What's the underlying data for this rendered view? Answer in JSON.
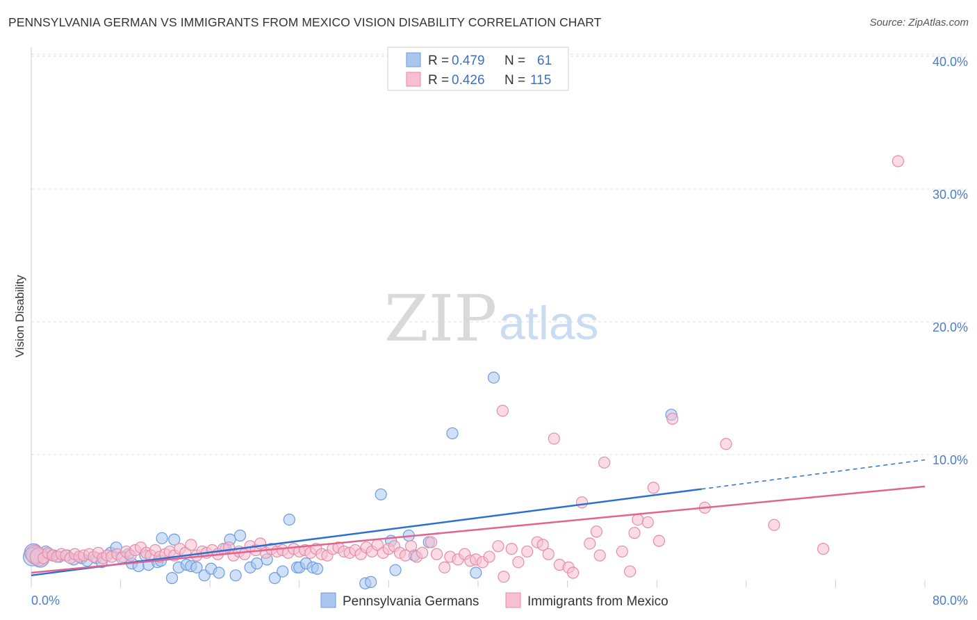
{
  "title": "PENNSYLVANIA GERMAN VS IMMIGRANTS FROM MEXICO VISION DISABILITY CORRELATION CHART",
  "source": "Source: ZipAtlas.com",
  "watermark": {
    "zip": "ZIP",
    "atlas": "atlas"
  },
  "colors": {
    "blue_fill": "#a9c6ee",
    "blue_stroke": "#6d9be0",
    "blue_line": "#2b6fd1",
    "pink_fill": "#f7bfd0",
    "pink_stroke": "#e98aa8",
    "pink_line": "#e0648f",
    "tick_text": "#4a7cc9",
    "grid": "#dddddd"
  },
  "legend": {
    "rows": [
      {
        "r_label": "R = ",
        "r_value": "0.479",
        "n_label": "N = ",
        "n_value": "61",
        "color": "blue"
      },
      {
        "r_label": "R = ",
        "r_value": "0.426",
        "n_label": "N = ",
        "n_value": "115",
        "color": "pink"
      }
    ]
  },
  "chart_data": {
    "type": "scatter",
    "title": "PENNSYLVANIA GERMAN VS IMMIGRANTS FROM MEXICO VISION DISABILITY CORRELATION CHART",
    "ylabel": "Vision Disability",
    "xlabel": "",
    "xlim": [
      0,
      80
    ],
    "ylim": [
      0,
      42
    ],
    "x_tick_labels": [
      {
        "value": 0,
        "label": "0.0%"
      },
      {
        "value": 80,
        "label": "80.0%"
      }
    ],
    "y_tick_labels": [
      {
        "value": 10,
        "label": "10.0%"
      },
      {
        "value": 20,
        "label": "20.0%"
      },
      {
        "value": 30,
        "label": "30.0%"
      },
      {
        "value": 40,
        "label": "40.0%"
      }
    ],
    "grid": true,
    "legend_position": "top-center",
    "series": [
      {
        "name": "Pennsylvania Germans",
        "color": "blue",
        "trend": {
          "x0": 0,
          "y0": 0.9,
          "x1": 60,
          "y1": 7.4,
          "dash_to_x": 80,
          "dash_to_y": 9.6
        },
        "points": [
          [
            0.2,
            2.6
          ],
          [
            0.4,
            2.4
          ],
          [
            0.8,
            2.2
          ],
          [
            1.3,
            2.7
          ],
          [
            1.6,
            2.5
          ],
          [
            2.0,
            2.4
          ],
          [
            2.5,
            2.3
          ],
          [
            3.2,
            2.4
          ],
          [
            3.8,
            2.1
          ],
          [
            4.5,
            2.2
          ],
          [
            5.0,
            2.0
          ],
          [
            5.8,
            2.2
          ],
          [
            6.3,
            1.9
          ],
          [
            7.1,
            2.6
          ],
          [
            7.6,
            3.0
          ],
          [
            8.2,
            2.3
          ],
          [
            8.7,
            2.5
          ],
          [
            9.0,
            1.8
          ],
          [
            9.6,
            1.6
          ],
          [
            10.2,
            2.4
          ],
          [
            10.5,
            1.7
          ],
          [
            11.3,
            1.9
          ],
          [
            11.6,
            2.0
          ],
          [
            11.7,
            3.7
          ],
          [
            12.6,
            0.7
          ],
          [
            12.8,
            3.6
          ],
          [
            13.2,
            1.5
          ],
          [
            13.9,
            1.7
          ],
          [
            14.3,
            1.6
          ],
          [
            14.8,
            1.5
          ],
          [
            15.5,
            0.9
          ],
          [
            16.1,
            1.4
          ],
          [
            16.8,
            1.1
          ],
          [
            17.4,
            2.9
          ],
          [
            17.8,
            3.6
          ],
          [
            18.3,
            0.9
          ],
          [
            18.7,
            3.9
          ],
          [
            19.6,
            1.5
          ],
          [
            20.2,
            1.8
          ],
          [
            21.1,
            2.1
          ],
          [
            21.8,
            0.7
          ],
          [
            22.5,
            1.2
          ],
          [
            23.1,
            5.1
          ],
          [
            23.8,
            1.5
          ],
          [
            24.0,
            1.5
          ],
          [
            24.6,
            1.8
          ],
          [
            25.2,
            1.5
          ],
          [
            25.6,
            1.4
          ],
          [
            29.9,
            0.3
          ],
          [
            30.4,
            0.4
          ],
          [
            31.3,
            7.0
          ],
          [
            32.2,
            3.5
          ],
          [
            32.6,
            1.3
          ],
          [
            33.8,
            3.9
          ],
          [
            34.3,
            2.4
          ],
          [
            35.6,
            3.4
          ],
          [
            37.7,
            11.6
          ],
          [
            39.8,
            1.1
          ],
          [
            41.4,
            15.8
          ],
          [
            57.3,
            13.0
          ],
          [
            0.1,
            2.3
          ]
        ]
      },
      {
        "name": "Immigrants from Mexico",
        "color": "pink",
        "trend": {
          "x0": 0,
          "y0": 1.1,
          "x1": 80,
          "y1": 7.6
        },
        "points": [
          [
            0.3,
            2.5
          ],
          [
            0.7,
            2.3
          ],
          [
            1.1,
            2.2
          ],
          [
            1.5,
            2.6
          ],
          [
            1.9,
            2.4
          ],
          [
            2.3,
            2.3
          ],
          [
            2.7,
            2.5
          ],
          [
            3.1,
            2.4
          ],
          [
            3.5,
            2.2
          ],
          [
            3.9,
            2.5
          ],
          [
            4.3,
            2.3
          ],
          [
            4.7,
            2.4
          ],
          [
            5.2,
            2.5
          ],
          [
            5.6,
            2.3
          ],
          [
            6.0,
            2.6
          ],
          [
            6.4,
            2.2
          ],
          [
            6.8,
            2.4
          ],
          [
            7.2,
            2.3
          ],
          [
            7.7,
            2.5
          ],
          [
            8.1,
            2.2
          ],
          [
            8.5,
            2.7
          ],
          [
            8.9,
            2.4
          ],
          [
            9.3,
            2.8
          ],
          [
            9.8,
            3.0
          ],
          [
            10.3,
            2.6
          ],
          [
            10.7,
            2.4
          ],
          [
            11.1,
            2.8
          ],
          [
            11.5,
            2.3
          ],
          [
            12.0,
            2.5
          ],
          [
            12.4,
            2.7
          ],
          [
            12.8,
            2.4
          ],
          [
            13.3,
            2.9
          ],
          [
            13.8,
            2.6
          ],
          [
            14.3,
            3.2
          ],
          [
            14.8,
            2.4
          ],
          [
            15.3,
            2.7
          ],
          [
            15.7,
            2.6
          ],
          [
            16.2,
            2.8
          ],
          [
            16.7,
            2.5
          ],
          [
            17.2,
            2.9
          ],
          [
            17.7,
            3.0
          ],
          [
            18.1,
            2.4
          ],
          [
            18.6,
            2.7
          ],
          [
            19.1,
            2.5
          ],
          [
            19.6,
            3.1
          ],
          [
            20.1,
            2.8
          ],
          [
            20.5,
            3.3
          ],
          [
            21.0,
            2.6
          ],
          [
            21.5,
            2.9
          ],
          [
            22.0,
            2.7
          ],
          [
            22.5,
            2.8
          ],
          [
            23.0,
            2.6
          ],
          [
            23.5,
            2.9
          ],
          [
            24.0,
            2.7
          ],
          [
            24.5,
            2.8
          ],
          [
            25.0,
            2.6
          ],
          [
            25.5,
            2.9
          ],
          [
            26.0,
            2.5
          ],
          [
            26.5,
            2.4
          ],
          [
            27.0,
            2.9
          ],
          [
            27.5,
            3.0
          ],
          [
            28.0,
            2.7
          ],
          [
            28.5,
            2.6
          ],
          [
            29.0,
            2.8
          ],
          [
            29.5,
            2.5
          ],
          [
            30.0,
            3.0
          ],
          [
            30.5,
            2.7
          ],
          [
            31.0,
            3.2
          ],
          [
            31.5,
            2.6
          ],
          [
            32.0,
            2.9
          ],
          [
            32.5,
            3.1
          ],
          [
            33.0,
            2.6
          ],
          [
            33.5,
            2.4
          ],
          [
            34.0,
            3.1
          ],
          [
            34.5,
            2.3
          ],
          [
            35.0,
            2.6
          ],
          [
            35.8,
            3.4
          ],
          [
            36.3,
            2.5
          ],
          [
            37.0,
            1.5
          ],
          [
            37.5,
            2.3
          ],
          [
            38.2,
            2.1
          ],
          [
            38.8,
            2.5
          ],
          [
            39.3,
            2.0
          ],
          [
            39.8,
            2.1
          ],
          [
            40.4,
            1.9
          ],
          [
            41.0,
            2.3
          ],
          [
            41.8,
            3.1
          ],
          [
            42.3,
            0.8
          ],
          [
            43.0,
            2.9
          ],
          [
            43.6,
            1.9
          ],
          [
            44.4,
            2.7
          ],
          [
            45.3,
            3.4
          ],
          [
            45.8,
            3.2
          ],
          [
            46.3,
            2.5
          ],
          [
            46.8,
            11.2
          ],
          [
            47.3,
            1.7
          ],
          [
            48.1,
            1.5
          ],
          [
            48.5,
            1.1
          ],
          [
            49.3,
            6.4
          ],
          [
            50.0,
            3.3
          ],
          [
            50.6,
            4.2
          ],
          [
            50.9,
            2.4
          ],
          [
            51.3,
            9.4
          ],
          [
            52.9,
            2.7
          ],
          [
            53.6,
            1.2
          ],
          [
            54.0,
            4.1
          ],
          [
            54.3,
            5.1
          ],
          [
            55.2,
            4.9
          ],
          [
            55.7,
            7.5
          ],
          [
            56.2,
            3.5
          ],
          [
            57.4,
            12.7
          ],
          [
            60.3,
            6.0
          ],
          [
            62.2,
            10.8
          ],
          [
            66.5,
            4.7
          ],
          [
            70.9,
            2.9
          ],
          [
            77.6,
            32.1
          ],
          [
            42.2,
            13.3
          ]
        ]
      }
    ]
  },
  "bottom_legend": [
    {
      "label": "Pennsylvania Germans",
      "color": "blue"
    },
    {
      "label": "Immigrants from Mexico",
      "color": "pink"
    }
  ]
}
